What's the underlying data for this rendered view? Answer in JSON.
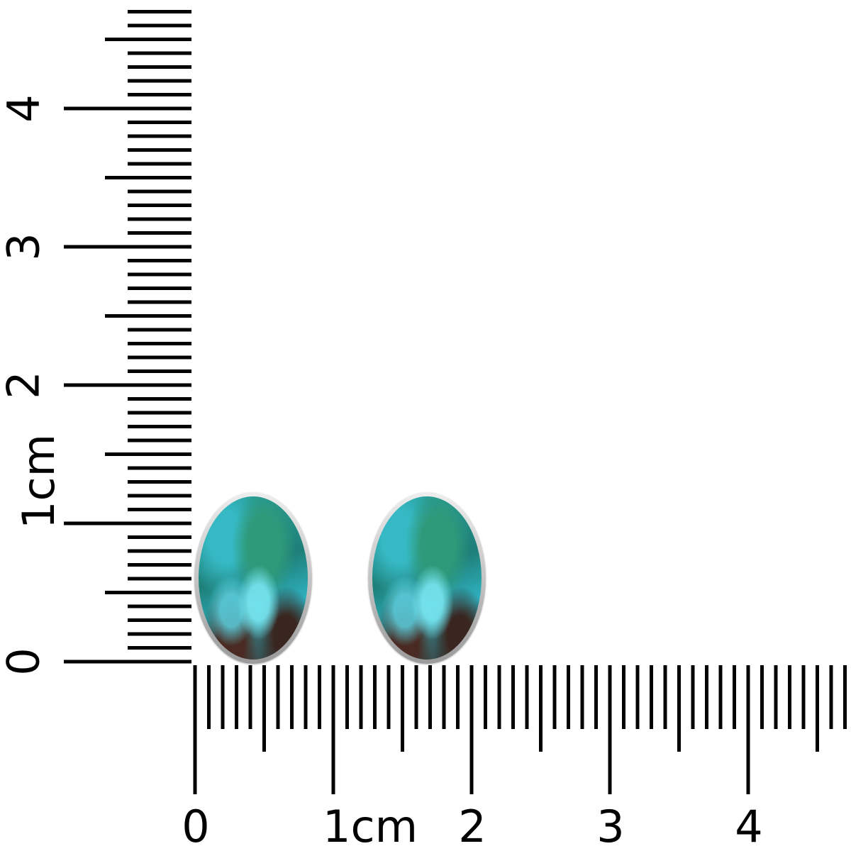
{
  "vertical_ruler": {
    "labels": [
      "0",
      "1cm",
      "2",
      "3",
      "4"
    ]
  },
  "horizontal_ruler": {
    "labels": [
      "0",
      "1cm",
      "2",
      "3",
      "4"
    ]
  },
  "product": {
    "items": [
      "earring-left",
      "earring-right"
    ],
    "stone_colors": [
      "#2aa3a0",
      "#1e7f77",
      "#36b9c4",
      "#3b2a25"
    ],
    "bezel_color": "#c8c8c8"
  }
}
